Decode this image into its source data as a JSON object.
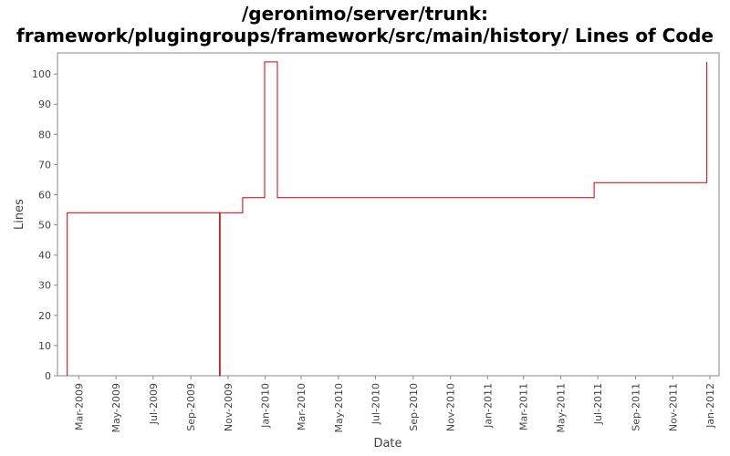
{
  "chart_data": {
    "type": "line",
    "title": [
      "/geronimo/server/trunk:",
      "framework/plugingroups/framework/src/main/history/ Lines of Code"
    ],
    "xlabel": "Date",
    "ylabel": "Lines",
    "step": true,
    "grid": false,
    "legend": "none",
    "ylim": [
      0,
      107
    ],
    "xlim": [
      "2009-01-25",
      "2012-01-16"
    ],
    "yticks": [
      0,
      10,
      20,
      30,
      40,
      50,
      60,
      70,
      80,
      90,
      100
    ],
    "xticks": [
      {
        "date": "2009-03-01",
        "label": "Mar-2009"
      },
      {
        "date": "2009-05-01",
        "label": "May-2009"
      },
      {
        "date": "2009-07-01",
        "label": "Jul-2009"
      },
      {
        "date": "2009-09-01",
        "label": "Sep-2009"
      },
      {
        "date": "2009-11-01",
        "label": "Nov-2009"
      },
      {
        "date": "2010-01-01",
        "label": "Jan-2010"
      },
      {
        "date": "2010-03-01",
        "label": "Mar-2010"
      },
      {
        "date": "2010-05-01",
        "label": "May-2010"
      },
      {
        "date": "2010-07-01",
        "label": "Jul-2010"
      },
      {
        "date": "2010-09-01",
        "label": "Sep-2010"
      },
      {
        "date": "2010-11-01",
        "label": "Nov-2010"
      },
      {
        "date": "2011-01-01",
        "label": "Jan-2011"
      },
      {
        "date": "2011-03-01",
        "label": "Mar-2011"
      },
      {
        "date": "2011-05-01",
        "label": "May-2011"
      },
      {
        "date": "2011-07-01",
        "label": "Jul-2011"
      },
      {
        "date": "2011-09-01",
        "label": "Sep-2011"
      },
      {
        "date": "2011-11-01",
        "label": "Nov-2011"
      },
      {
        "date": "2012-01-01",
        "label": "Jan-2012"
      }
    ],
    "series": [
      {
        "color": "#cc0000",
        "points": [
          {
            "date": "2009-02-10",
            "y": 0
          },
          {
            "date": "2009-02-10",
            "y": 54
          },
          {
            "date": "2009-10-18",
            "y": 54
          },
          {
            "date": "2009-10-18",
            "y": 0
          },
          {
            "date": "2009-10-19",
            "y": 0
          },
          {
            "date": "2009-10-19",
            "y": 54
          },
          {
            "date": "2009-11-25",
            "y": 54
          },
          {
            "date": "2009-11-25",
            "y": 59
          },
          {
            "date": "2009-12-31",
            "y": 59
          },
          {
            "date": "2009-12-31",
            "y": 104
          },
          {
            "date": "2010-01-21",
            "y": 104
          },
          {
            "date": "2010-01-21",
            "y": 59
          },
          {
            "date": "2011-06-25",
            "y": 59
          },
          {
            "date": "2011-06-25",
            "y": 64
          },
          {
            "date": "2011-12-27",
            "y": 64
          },
          {
            "date": "2011-12-27",
            "y": 104
          }
        ]
      }
    ]
  }
}
